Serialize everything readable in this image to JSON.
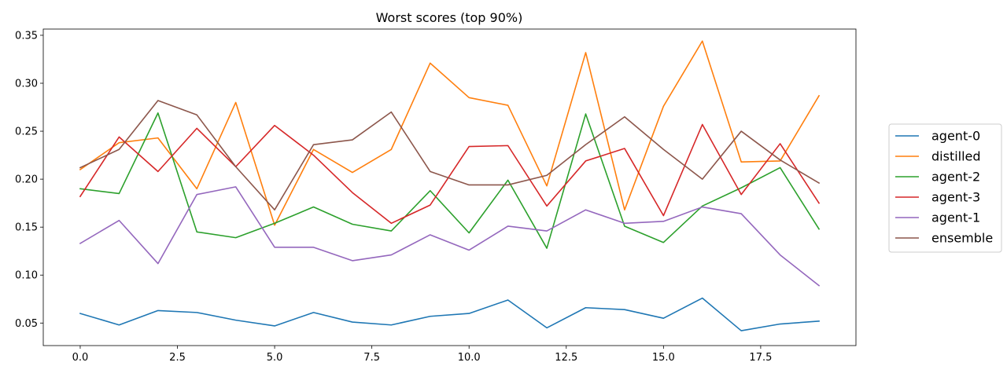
{
  "chart_data": {
    "type": "line",
    "title": "Worst scores (top 90%)",
    "xlabel": "",
    "ylabel": "",
    "x": [
      0,
      1,
      2,
      3,
      4,
      5,
      6,
      7,
      8,
      9,
      10,
      11,
      12,
      13,
      14,
      15,
      16,
      17,
      18,
      19
    ],
    "xlim": [
      -0.95,
      19.95
    ],
    "ylim": [
      0.0265,
      0.3565
    ],
    "x_ticks": [
      0.0,
      2.5,
      5.0,
      7.5,
      10.0,
      12.5,
      15.0,
      17.5
    ],
    "x_tick_labels": [
      "0.0",
      "2.5",
      "5.0",
      "7.5",
      "10.0",
      "12.5",
      "15.0",
      "17.5"
    ],
    "y_ticks": [
      0.05,
      0.1,
      0.15,
      0.2,
      0.25,
      0.3,
      0.35
    ],
    "y_tick_labels": [
      "0.05",
      "0.10",
      "0.15",
      "0.20",
      "0.25",
      "0.30",
      "0.35"
    ],
    "grid": false,
    "legend_position": "outside-right",
    "series": [
      {
        "name": "agent-0",
        "color": "#1f77b4",
        "values": [
          0.06,
          0.048,
          0.063,
          0.061,
          0.053,
          0.047,
          0.061,
          0.051,
          0.048,
          0.057,
          0.06,
          0.074,
          0.045,
          0.066,
          0.064,
          0.055,
          0.076,
          0.042,
          0.049,
          0.052
        ]
      },
      {
        "name": "distilled",
        "color": "#ff7f0e",
        "values": [
          0.21,
          0.238,
          0.243,
          0.19,
          0.28,
          0.152,
          0.231,
          0.207,
          0.231,
          0.321,
          0.285,
          0.277,
          0.193,
          0.332,
          0.168,
          0.276,
          0.344,
          0.218,
          0.219,
          0.287
        ]
      },
      {
        "name": "agent-2",
        "color": "#2ca02c",
        "values": [
          0.19,
          0.185,
          0.269,
          0.145,
          0.139,
          0.154,
          0.171,
          0.153,
          0.146,
          0.188,
          0.144,
          0.199,
          0.128,
          0.268,
          0.151,
          0.134,
          0.172,
          0.191,
          0.212,
          0.148
        ]
      },
      {
        "name": "agent-3",
        "color": "#d62728",
        "values": [
          0.182,
          0.244,
          0.208,
          0.253,
          0.213,
          0.256,
          0.225,
          0.186,
          0.154,
          0.173,
          0.234,
          0.235,
          0.172,
          0.219,
          0.232,
          0.162,
          0.257,
          0.184,
          0.237,
          0.175
        ]
      },
      {
        "name": "agent-1",
        "color": "#9467bd",
        "values": [
          0.133,
          0.157,
          0.112,
          0.184,
          0.192,
          0.129,
          0.129,
          0.115,
          0.121,
          0.142,
          0.126,
          0.151,
          0.146,
          0.168,
          0.154,
          0.156,
          0.171,
          0.164,
          0.121,
          0.089
        ]
      },
      {
        "name": "ensemble",
        "color": "#8c564b",
        "values": [
          0.212,
          0.231,
          0.282,
          0.267,
          0.213,
          0.168,
          0.236,
          0.241,
          0.27,
          0.208,
          0.194,
          0.194,
          0.204,
          0.236,
          0.265,
          0.231,
          0.2,
          0.25,
          0.22,
          0.196
        ]
      }
    ]
  }
}
